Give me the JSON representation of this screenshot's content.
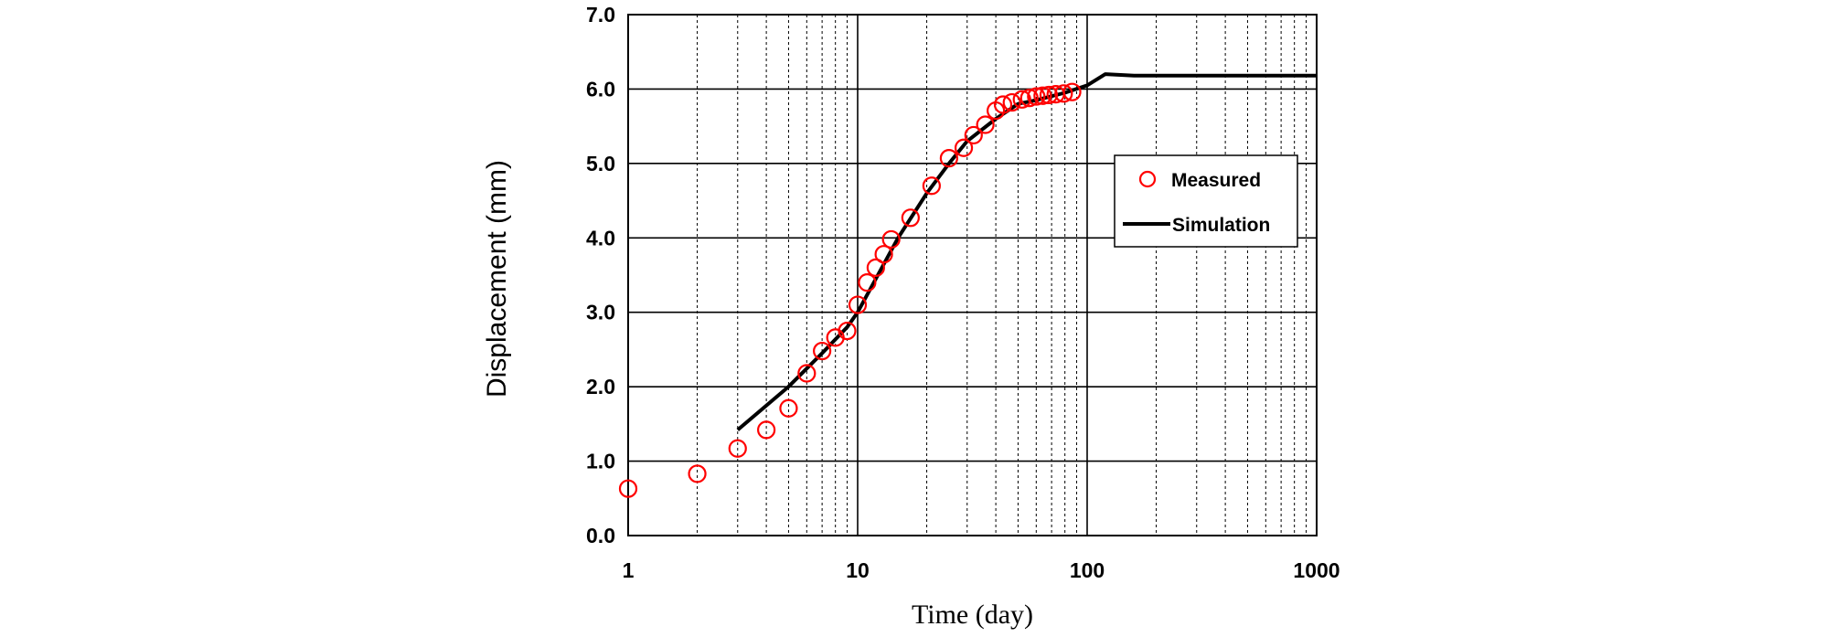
{
  "chart_data": {
    "type": "scatter",
    "xlabel": "Time (day)",
    "ylabel": "Displacement (mm)",
    "x_scale": "log",
    "xlim": [
      1,
      1000
    ],
    "ylim": [
      0,
      7
    ],
    "x_ticks": [
      1,
      10,
      100,
      1000
    ],
    "x_tick_labels": [
      "1",
      "10",
      "100",
      "1000"
    ],
    "y_ticks": [
      0,
      1,
      2,
      3,
      4,
      5,
      6,
      7
    ],
    "y_tick_labels": [
      "0.0",
      "1.0",
      "2.0",
      "3.0",
      "4.0",
      "5.0",
      "6.0",
      "7.0"
    ],
    "grid": true,
    "legend_position": "right",
    "series": [
      {
        "name": "Measured",
        "kind": "scatter",
        "marker": "open-circle",
        "color": "#ff0000",
        "points": [
          [
            1,
            0.63
          ],
          [
            2,
            0.83
          ],
          [
            3,
            1.17
          ],
          [
            4,
            1.42
          ],
          [
            5,
            1.71
          ],
          [
            6,
            2.18
          ],
          [
            7,
            2.48
          ],
          [
            8,
            2.66
          ],
          [
            9,
            2.75
          ],
          [
            10,
            3.1
          ],
          [
            11,
            3.4
          ],
          [
            12,
            3.6
          ],
          [
            13,
            3.78
          ],
          [
            14,
            3.98
          ],
          [
            17,
            4.27
          ],
          [
            21,
            4.7
          ],
          [
            25,
            5.07
          ],
          [
            29,
            5.21
          ],
          [
            32,
            5.38
          ],
          [
            36,
            5.52
          ],
          [
            40,
            5.71
          ],
          [
            43,
            5.79
          ],
          [
            47,
            5.82
          ],
          [
            52,
            5.86
          ],
          [
            56,
            5.88
          ],
          [
            60,
            5.9
          ],
          [
            64,
            5.91
          ],
          [
            68,
            5.92
          ],
          [
            73,
            5.93
          ],
          [
            79,
            5.94
          ],
          [
            86,
            5.96
          ]
        ]
      },
      {
        "name": "Simulation",
        "kind": "line",
        "color": "#000000",
        "points": [
          [
            3,
            1.42
          ],
          [
            5,
            2.0
          ],
          [
            7,
            2.45
          ],
          [
            9,
            2.8
          ],
          [
            10,
            3.0
          ],
          [
            12,
            3.45
          ],
          [
            15,
            4.0
          ],
          [
            20,
            4.6
          ],
          [
            25,
            5.0
          ],
          [
            30,
            5.3
          ],
          [
            40,
            5.6
          ],
          [
            50,
            5.8
          ],
          [
            60,
            5.85
          ],
          [
            80,
            5.95
          ],
          [
            100,
            6.05
          ],
          [
            120,
            6.2
          ],
          [
            160,
            6.18
          ],
          [
            300,
            6.18
          ],
          [
            1000,
            6.18
          ]
        ]
      }
    ]
  },
  "colors": {
    "measured": "#ff0000",
    "simulation": "#000000",
    "grid": "#000000",
    "background": "#ffffff"
  }
}
